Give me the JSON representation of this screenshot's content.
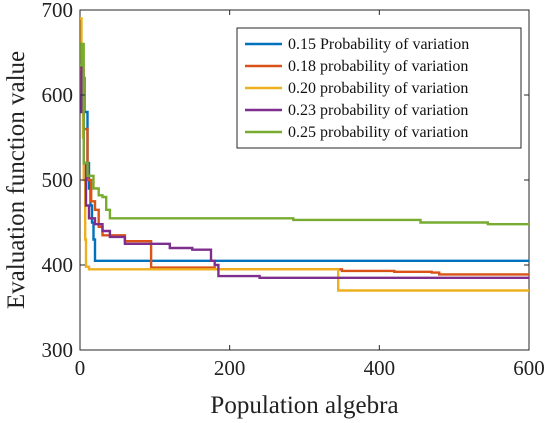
{
  "chart_data": {
    "type": "line",
    "xlabel": "Population algebra",
    "ylabel": "Evaluation function value",
    "xlim": [
      0,
      600
    ],
    "ylim": [
      300,
      700
    ],
    "xticks": [
      0,
      200,
      400,
      600
    ],
    "yticks": [
      300,
      400,
      500,
      600,
      700
    ],
    "x_tick_labels": [
      "0",
      "200",
      "400",
      "600"
    ],
    "y_tick_labels": [
      "300",
      "400",
      "500",
      "600",
      "700"
    ],
    "grid": false,
    "legend_position": "top-right",
    "series": [
      {
        "name": "0.15 Probability of variation",
        "color": "#0072BD",
        "x": [
          0,
          3,
          6,
          8,
          10,
          12,
          14,
          16,
          18,
          20,
          600
        ],
        "y": [
          600,
          620,
          580,
          580,
          520,
          490,
          470,
          450,
          430,
          405,
          405
        ]
      },
      {
        "name": "0.18 probability of variation",
        "color": "#D95319",
        "x": [
          0,
          5,
          10,
          15,
          20,
          25,
          30,
          50,
          60,
          90,
          95,
          180,
          350,
          420,
          470,
          480,
          600
        ],
        "y": [
          630,
          560,
          500,
          475,
          465,
          445,
          435,
          435,
          428,
          428,
          397,
          395,
          393,
          392,
          391,
          389,
          389
        ]
      },
      {
        "name": "0.20 probability of variation",
        "color": "#EDB120",
        "x": [
          0,
          2,
          4,
          5,
          7,
          8,
          12,
          340,
          345,
          600
        ],
        "y": [
          690,
          600,
          550,
          500,
          430,
          398,
          395,
          395,
          370,
          370
        ]
      },
      {
        "name": "0.23 probability of variation",
        "color": "#7E2F8E",
        "x": [
          0,
          2,
          5,
          8,
          12,
          20,
          30,
          40,
          60,
          90,
          120,
          150,
          175,
          180,
          185,
          240,
          600
        ],
        "y": [
          640,
          580,
          520,
          470,
          455,
          448,
          440,
          433,
          425,
          425,
          420,
          418,
          405,
          400,
          387,
          385,
          385
        ]
      },
      {
        "name": "0.25 probability of variation",
        "color": "#77AC30",
        "x": [
          0,
          2,
          5,
          10,
          18,
          25,
          30,
          35,
          40,
          280,
          285,
          450,
          455,
          540,
          545,
          600
        ],
        "y": [
          635,
          660,
          520,
          505,
          490,
          482,
          480,
          465,
          455,
          455,
          453,
          453,
          450,
          450,
          448,
          448
        ]
      }
    ]
  }
}
